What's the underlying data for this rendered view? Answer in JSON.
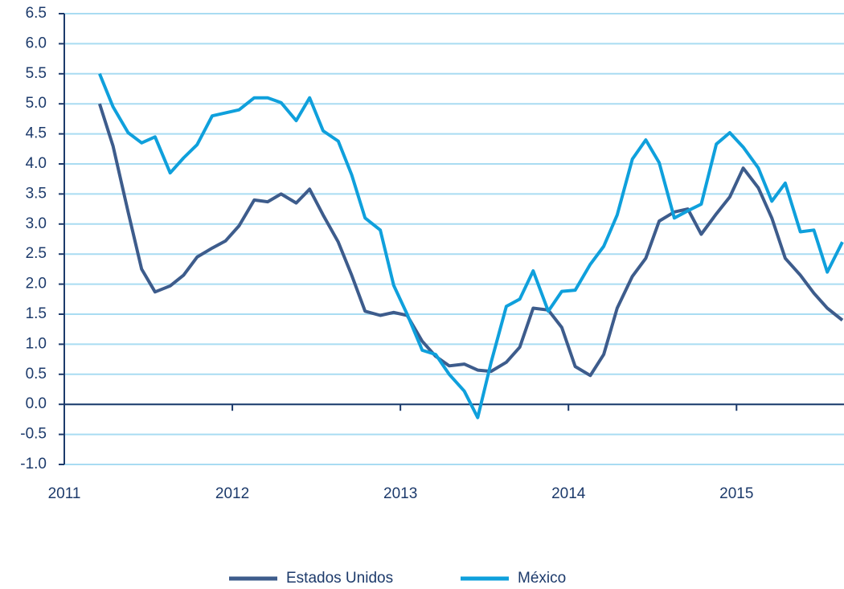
{
  "chart_data": {
    "type": "line",
    "x": [
      2011.21,
      2011.29,
      2011.38,
      2011.46,
      2011.54,
      2011.63,
      2011.71,
      2011.79,
      2011.88,
      2011.96,
      2012.04,
      2012.13,
      2012.21,
      2012.29,
      2012.38,
      2012.46,
      2012.54,
      2012.63,
      2012.71,
      2012.79,
      2012.88,
      2012.96,
      2013.04,
      2013.13,
      2013.21,
      2013.29,
      2013.38,
      2013.46,
      2013.54,
      2013.63,
      2013.71,
      2013.79,
      2013.88,
      2013.96,
      2014.04,
      2014.13,
      2014.21,
      2014.29,
      2014.38,
      2014.46,
      2014.54,
      2014.63,
      2014.71,
      2014.79,
      2014.88,
      2014.96,
      2015.04,
      2015.13,
      2015.21,
      2015.29,
      2015.38,
      2015.46,
      2015.54,
      2015.63
    ],
    "series": [
      {
        "name": "Estados Unidos",
        "color": "#3d5c8c",
        "values": [
          5.0,
          4.3,
          3.2,
          2.25,
          1.87,
          1.97,
          2.15,
          2.45,
          2.6,
          2.72,
          2.97,
          3.4,
          3.37,
          3.5,
          3.35,
          3.58,
          3.15,
          2.7,
          2.15,
          1.55,
          1.48,
          1.53,
          1.48,
          1.05,
          0.8,
          0.64,
          0.67,
          0.57,
          0.55,
          0.7,
          0.95,
          1.6,
          1.57,
          1.28,
          0.63,
          0.48,
          0.83,
          1.6,
          2.13,
          2.43,
          3.05,
          3.2,
          3.25,
          2.83,
          3.17,
          3.45,
          3.93,
          3.6,
          3.1,
          2.43,
          2.15,
          1.85,
          1.6,
          1.4
        ]
      },
      {
        "name": "México",
        "color": "#0fa0dc",
        "values": [
          5.5,
          4.95,
          4.52,
          4.35,
          4.45,
          3.85,
          4.1,
          4.32,
          4.8,
          4.85,
          4.9,
          5.1,
          5.1,
          5.02,
          4.72,
          5.1,
          4.55,
          4.38,
          3.82,
          3.1,
          2.9,
          1.98,
          1.5,
          0.9,
          0.83,
          0.5,
          0.22,
          -0.22,
          0.7,
          1.63,
          1.75,
          2.22,
          1.55,
          1.88,
          1.9,
          2.33,
          2.63,
          3.15,
          4.08,
          4.4,
          4.02,
          3.1,
          3.22,
          3.33,
          4.33,
          4.52,
          4.28,
          3.93,
          3.38,
          3.68,
          2.87,
          2.9,
          2.2,
          2.7
        ]
      }
    ],
    "xlim": [
      2011,
      2015.63
    ],
    "xticks": [
      2011,
      2012,
      2013,
      2014,
      2015
    ],
    "ylim": [
      -1,
      6.5
    ],
    "yticks": [
      {
        "value": -1,
        "label": "-1.0"
      },
      -0.5,
      {
        "value": 0,
        "label": "0.0"
      },
      0.5,
      {
        "value": 1,
        "label": "1.0"
      },
      1.5,
      {
        "value": 2,
        "label": "2.0"
      },
      2.5,
      {
        "value": 3,
        "label": "3.0"
      },
      3.5,
      {
        "value": 4,
        "label": "4.0"
      },
      4.5,
      {
        "value": 5,
        "label": "5.0"
      },
      5.5,
      {
        "value": 6,
        "label": "6.0"
      },
      6.5
    ],
    "grid": true,
    "legend": "bottom"
  }
}
